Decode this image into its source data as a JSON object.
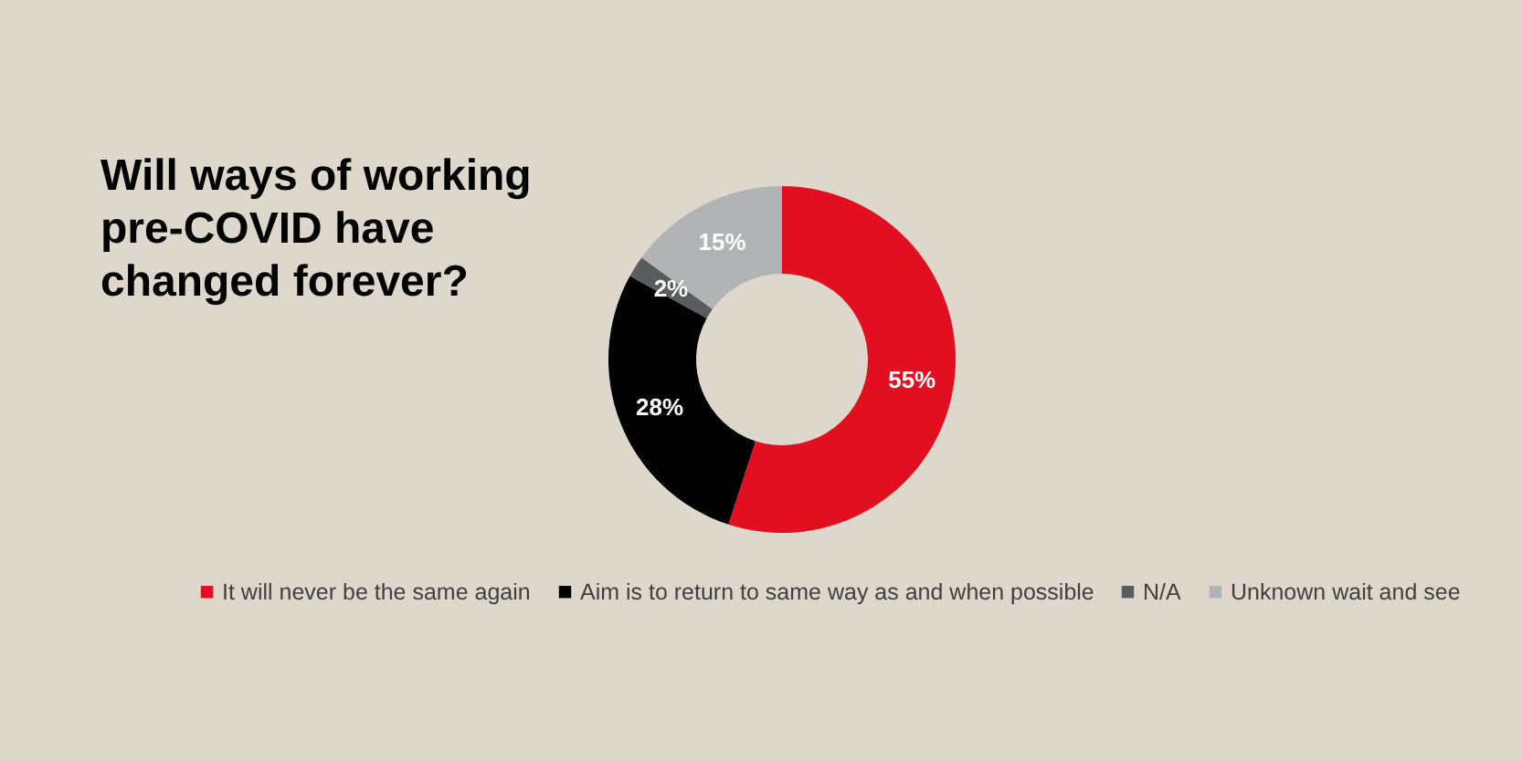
{
  "chart_data": {
    "type": "donut",
    "title": "Will ways of working pre-COVID have changed forever?",
    "categories": [
      "It will never be the same again",
      "Aim is to return to same way as and when possible",
      "N/A",
      "Unknown wait and see"
    ],
    "values": [
      55,
      28,
      2,
      15
    ],
    "colors": [
      "#e10f1f",
      "#000000",
      "#5a5b5f",
      "#b2b3b5"
    ],
    "value_labels": [
      "55%",
      "28%",
      "2%",
      "15%"
    ],
    "legend": "bottom"
  }
}
